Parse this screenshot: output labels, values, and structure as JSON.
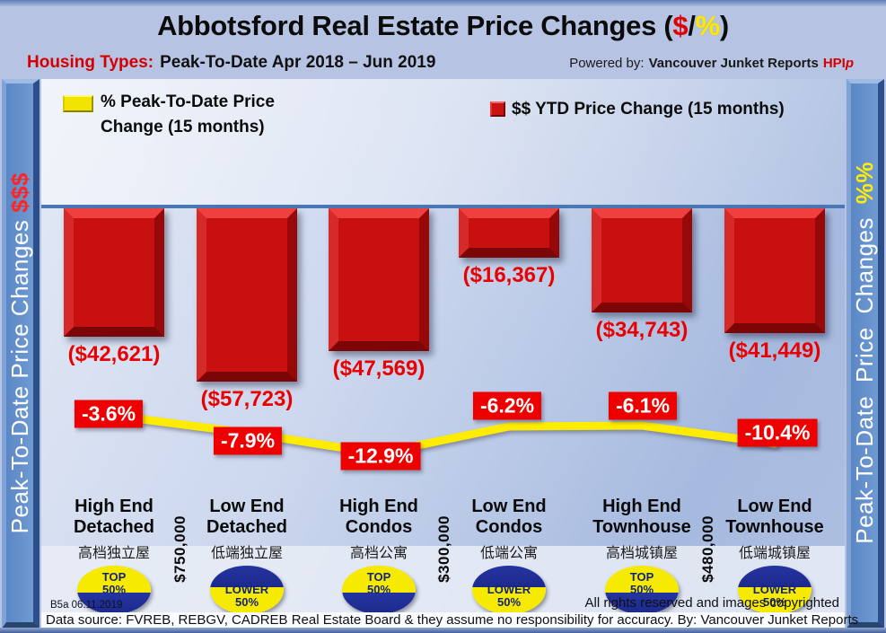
{
  "title": {
    "text": "Abbotsford Real Estate Price Changes (",
    "dollar": "$",
    "slash": "/",
    "percent": "%",
    "close": ")"
  },
  "subtitle": {
    "label": "Housing Types:",
    "text": "Peak-To-Date Apr 2018 – Jun 2019"
  },
  "powered_by": {
    "prefix": "Powered by:",
    "brand": "Vancouver Junket Reports",
    "hpi": "HPI",
    "hpi_suffix": "p"
  },
  "left_axis": {
    "label": "Peak-To-Date Price Changes ",
    "suffix": "$$$"
  },
  "right_axis": {
    "label": "Peak-To-Date Price Changes ",
    "suffix": "%%"
  },
  "footer": {
    "version": "B5a 06.11.2019",
    "rights": "All rights reserved and  images copyrighted",
    "source": "Data source: FVREB, REBGV, CADREB Real Estate Board & they assume no responsibility for accuracy. By: Vancouver Junket Reports"
  },
  "chart_data": {
    "type": "combo-bar-line",
    "title": "Abbotsford Real Estate Price Changes ($/%)",
    "period": "Peak-To-Date Apr 2018 – Jun 2019",
    "ylabel_left": "Peak-To-Date Price Changes $$$",
    "ylabel_right": "Peak-To-Date Price Changes %%",
    "legend_position": "top",
    "grid": false,
    "categories": [
      {
        "line1": "High End",
        "line2": "Detached",
        "zh": "高档独立屋",
        "badge": {
          "line1": "TOP",
          "line2": "50%",
          "variant": "top"
        }
      },
      {
        "line1": "Low End",
        "line2": "Detached",
        "zh": "低端独立屋",
        "badge": {
          "line1": "LOWER",
          "line2": "50%",
          "variant": "lower"
        }
      },
      {
        "line1": "High End",
        "line2": "Condos",
        "zh": "高档公寓",
        "badge": {
          "line1": "TOP",
          "line2": "50%",
          "variant": "top"
        }
      },
      {
        "line1": "Low End",
        "line2": "Condos",
        "zh": "低端公寓",
        "badge": {
          "line1": "LOWER",
          "line2": "50%",
          "variant": "lower"
        }
      },
      {
        "line1": "High End",
        "line2": "Townhouse",
        "zh": "高档城镇屋",
        "badge": {
          "line1": "TOP",
          "line2": "50%",
          "variant": "top"
        }
      },
      {
        "line1": "Low End",
        "line2": "Townhouse",
        "zh": "低端城镇屋",
        "badge": {
          "line1": "LOWER",
          "line2": "50%",
          "variant": "lower"
        }
      }
    ],
    "series": [
      {
        "name": "$$ YTD Price Change (15 months)",
        "type": "bar",
        "color": "#c81010",
        "values": [
          -42621,
          -57723,
          -47569,
          -16367,
          -34743,
          -41449
        ],
        "labels": [
          "($42,621)",
          "($57,723)",
          "($47,569)",
          "($16,367)",
          "($34,743)",
          "($41,449)"
        ]
      },
      {
        "name": "% Peak-To-Date Price Change (15 months)",
        "type": "line",
        "color": "#ffec00",
        "values": [
          -3.6,
          -7.9,
          -12.9,
          -6.2,
          -6.1,
          -10.4
        ],
        "labels": [
          "-3.6%",
          "-7.9%",
          "-12.9%",
          "-6.2%",
          "-6.1%",
          "-10.4%"
        ]
      }
    ],
    "price_separators": [
      {
        "between": [
          0,
          1
        ],
        "label": "$750,000"
      },
      {
        "between": [
          2,
          3
        ],
        "label": "$300,000"
      },
      {
        "between": [
          4,
          5
        ],
        "label": "$480,000"
      }
    ]
  }
}
